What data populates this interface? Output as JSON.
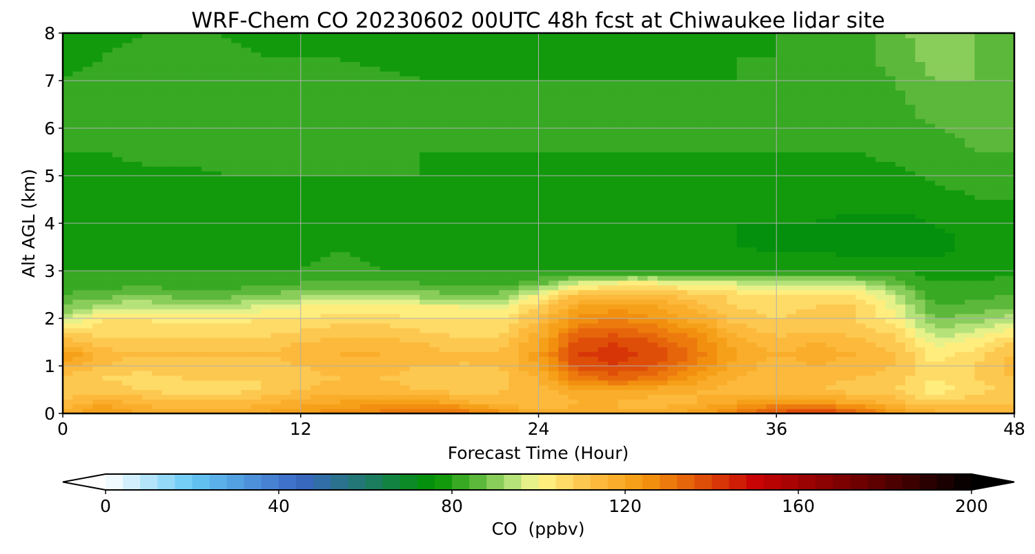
{
  "chart_data": {
    "type": "heatmap",
    "title": "WRF-Chem CO  20230602 00UTC 48h fcst at Chiwaukee lidar site",
    "xlabel": "Forecast Time (Hour)",
    "ylabel": "Alt AGL (km)",
    "xlim": [
      0,
      48
    ],
    "ylim": [
      0,
      8
    ],
    "x_ticks": [
      "0",
      "12",
      "24",
      "36",
      "48"
    ],
    "y_ticks": [
      "0",
      "1",
      "2",
      "3",
      "4",
      "5",
      "6",
      "7",
      "8"
    ],
    "grid": true,
    "x": [
      0,
      2,
      4,
      6,
      8,
      10,
      12,
      14,
      16,
      18,
      20,
      22,
      24,
      26,
      28,
      30,
      32,
      34,
      36,
      38,
      40,
      42,
      44,
      46,
      48
    ],
    "y": [
      0.0,
      0.25,
      0.5,
      0.75,
      1.0,
      1.25,
      1.5,
      1.75,
      2.0,
      2.25,
      2.5,
      2.75,
      3.0,
      3.25,
      3.5,
      3.75,
      4.0,
      4.5,
      5.0,
      5.5,
      6.0,
      6.5,
      7.0,
      7.5,
      8.0
    ],
    "values": [
      [
        118,
        125,
        120,
        118,
        118,
        120,
        124,
        126,
        130,
        134,
        134,
        126,
        118,
        118,
        116,
        118,
        122,
        130,
        138,
        144,
        136,
        124,
        118,
        116,
        116
      ],
      [
        112,
        118,
        114,
        112,
        112,
        114,
        118,
        120,
        122,
        122,
        118,
        112,
        112,
        116,
        116,
        114,
        116,
        120,
        124,
        122,
        118,
        114,
        108,
        110,
        112
      ],
      [
        108,
        110,
        108,
        106,
        106,
        108,
        112,
        114,
        114,
        112,
        110,
        112,
        114,
        120,
        120,
        118,
        116,
        114,
        112,
        112,
        110,
        108,
        102,
        106,
        110
      ],
      [
        110,
        108,
        106,
        108,
        108,
        108,
        110,
        112,
        112,
        110,
        110,
        110,
        116,
        130,
        134,
        130,
        122,
        116,
        112,
        114,
        112,
        110,
        104,
        108,
        112
      ],
      [
        118,
        112,
        110,
        110,
        110,
        110,
        112,
        114,
        114,
        112,
        112,
        112,
        120,
        138,
        140,
        136,
        128,
        118,
        114,
        116,
        114,
        112,
        104,
        108,
        114
      ],
      [
        124,
        114,
        112,
        112,
        112,
        112,
        114,
        116,
        116,
        114,
        112,
        112,
        122,
        140,
        142,
        138,
        130,
        120,
        116,
        118,
        116,
        112,
        102,
        106,
        112
      ],
      [
        114,
        110,
        110,
        110,
        110,
        110,
        112,
        114,
        114,
        112,
        110,
        110,
        120,
        138,
        140,
        136,
        128,
        118,
        114,
        116,
        114,
        110,
        98,
        102,
        108
      ],
      [
        106,
        106,
        106,
        106,
        106,
        106,
        108,
        110,
        110,
        108,
        106,
        106,
        116,
        132,
        134,
        130,
        124,
        114,
        110,
        112,
        110,
        106,
        92,
        96,
        102
      ],
      [
        94,
        104,
        104,
        102,
        102,
        104,
        104,
        106,
        106,
        104,
        104,
        104,
        112,
        126,
        128,
        124,
        118,
        110,
        108,
        110,
        108,
        102,
        88,
        90,
        94
      ],
      [
        88,
        94,
        96,
        92,
        92,
        98,
        100,
        100,
        100,
        100,
        100,
        98,
        108,
        120,
        122,
        120,
        114,
        108,
        106,
        108,
        108,
        98,
        84,
        86,
        88
      ],
      [
        84,
        86,
        88,
        86,
        86,
        88,
        90,
        92,
        92,
        90,
        88,
        88,
        100,
        112,
        114,
        112,
        110,
        106,
        104,
        104,
        104,
        94,
        82,
        82,
        84
      ],
      [
        82,
        82,
        82,
        82,
        82,
        82,
        84,
        84,
        84,
        84,
        82,
        82,
        86,
        96,
        100,
        100,
        98,
        96,
        94,
        94,
        94,
        86,
        80,
        80,
        82
      ],
      [
        80,
        80,
        80,
        80,
        80,
        80,
        80,
        82,
        80,
        80,
        80,
        80,
        80,
        80,
        80,
        80,
        80,
        80,
        80,
        80,
        80,
        80,
        78,
        78,
        79
      ],
      [
        79,
        79,
        79,
        79,
        79,
        79,
        79,
        81,
        79,
        79,
        79,
        78,
        78,
        78,
        78,
        78,
        78,
        78,
        77,
        77,
        77,
        76,
        76,
        77,
        78
      ],
      [
        78,
        78,
        78,
        78,
        78,
        78,
        78,
        79,
        78,
        78,
        78,
        78,
        77,
        77,
        77,
        77,
        77,
        76,
        75,
        75,
        74,
        74,
        75,
        77,
        78
      ],
      [
        78,
        78,
        78,
        78,
        78,
        78,
        78,
        78,
        78,
        78,
        78,
        77,
        77,
        77,
        77,
        77,
        77,
        76,
        75,
        75,
        74,
        74,
        75,
        77,
        78
      ],
      [
        78,
        78,
        78,
        78,
        78,
        78,
        78,
        78,
        78,
        78,
        77,
        77,
        77,
        77,
        77,
        77,
        77,
        76,
        76,
        76,
        75,
        75,
        76,
        78,
        79
      ],
      [
        78,
        78,
        78,
        78,
        78,
        78,
        79,
        79,
        79,
        78,
        78,
        78,
        78,
        78,
        78,
        78,
        78,
        77,
        77,
        77,
        77,
        77,
        78,
        80,
        80
      ],
      [
        79,
        78,
        79,
        79,
        80,
        80,
        80,
        80,
        80,
        80,
        79,
        79,
        79,
        79,
        79,
        79,
        79,
        79,
        78,
        78,
        78,
        79,
        81,
        82,
        82
      ],
      [
        80,
        80,
        81,
        81,
        81,
        81,
        81,
        81,
        81,
        80,
        80,
        80,
        80,
        80,
        80,
        80,
        80,
        80,
        80,
        80,
        80,
        81,
        82,
        84,
        84
      ],
      [
        80,
        81,
        82,
        83,
        82,
        82,
        82,
        82,
        82,
        81,
        81,
        80,
        80,
        80,
        80,
        80,
        80,
        80,
        80,
        80,
        81,
        82,
        84,
        85,
        85
      ],
      [
        81,
        82,
        83,
        84,
        83,
        83,
        83,
        82,
        82,
        81,
        80,
        80,
        80,
        80,
        80,
        80,
        80,
        80,
        80,
        80,
        81,
        83,
        86,
        87,
        86
      ],
      [
        80,
        81,
        82,
        83,
        82,
        82,
        82,
        81,
        81,
        80,
        80,
        80,
        80,
        80,
        80,
        80,
        80,
        80,
        80,
        81,
        82,
        84,
        88,
        88,
        87
      ],
      [
        79,
        80,
        81,
        81,
        81,
        80,
        80,
        80,
        79,
        79,
        79,
        79,
        79,
        79,
        79,
        79,
        79,
        80,
        80,
        81,
        82,
        86,
        90,
        88,
        86
      ],
      [
        79,
        79,
        80,
        80,
        80,
        79,
        79,
        79,
        79,
        79,
        79,
        79,
        79,
        79,
        79,
        79,
        79,
        79,
        80,
        81,
        82,
        87,
        90,
        88,
        86
      ]
    ],
    "colorbar": {
      "label": "CO  (ppbv)",
      "range": [
        0,
        200
      ],
      "ticks": [
        "0",
        "40",
        "80",
        "120",
        "160",
        "200"
      ],
      "extend": "both",
      "levels": 50,
      "stops": [
        {
          "v": 0,
          "c": "#ffffff"
        },
        {
          "v": 20,
          "c": "#66c8f5"
        },
        {
          "v": 45,
          "c": "#3a66c4"
        },
        {
          "v": 60,
          "c": "#1f7a6a"
        },
        {
          "v": 76,
          "c": "#009300"
        },
        {
          "v": 86,
          "c": "#5cb83a"
        },
        {
          "v": 96,
          "c": "#ccec8a"
        },
        {
          "v": 100,
          "c": "#fff68a"
        },
        {
          "v": 112,
          "c": "#fdbf43"
        },
        {
          "v": 124,
          "c": "#f59a10"
        },
        {
          "v": 136,
          "c": "#e35a0a"
        },
        {
          "v": 150,
          "c": "#c80404"
        },
        {
          "v": 175,
          "c": "#6b0000"
        },
        {
          "v": 200,
          "c": "#000000"
        }
      ]
    }
  }
}
